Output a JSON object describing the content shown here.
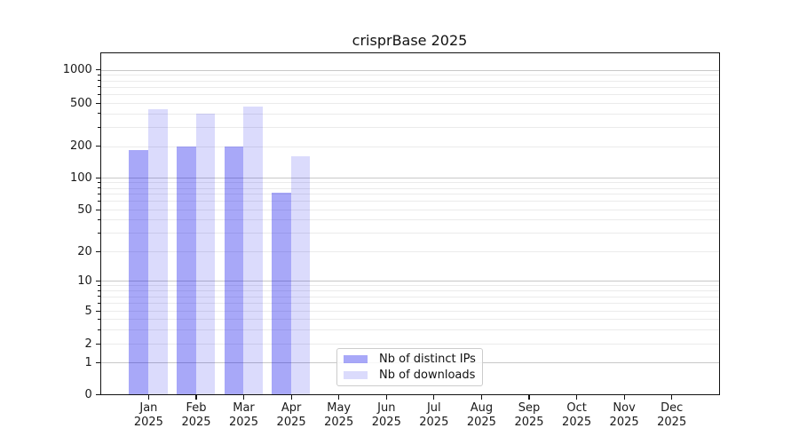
{
  "chart_data": {
    "type": "bar",
    "title": "crisprBase 2025",
    "categories": [
      {
        "label": "Jan",
        "sublabel": "2025"
      },
      {
        "label": "Feb",
        "sublabel": "2025"
      },
      {
        "label": "Mar",
        "sublabel": "2025"
      },
      {
        "label": "Apr",
        "sublabel": "2025"
      },
      {
        "label": "May",
        "sublabel": "2025"
      },
      {
        "label": "Jun",
        "sublabel": "2025"
      },
      {
        "label": "Jul",
        "sublabel": "2025"
      },
      {
        "label": "Aug",
        "sublabel": "2025"
      },
      {
        "label": "Sep",
        "sublabel": "2025"
      },
      {
        "label": "Oct",
        "sublabel": "2025"
      },
      {
        "label": "Nov",
        "sublabel": "2025"
      },
      {
        "label": "Dec",
        "sublabel": "2025"
      }
    ],
    "series": [
      {
        "name": "Nb of distinct IPs",
        "color": "rgba(0,0,235,0.34)",
        "values": [
          185,
          197,
          197,
          72,
          0,
          0,
          0,
          0,
          0,
          0,
          0,
          0
        ]
      },
      {
        "name": "Nb of downloads",
        "color": "rgba(0,0,235,0.14)",
        "values": [
          440,
          395,
          465,
          160,
          0,
          0,
          0,
          0,
          0,
          0,
          0,
          0
        ]
      }
    ],
    "xlabel": "",
    "ylabel": "",
    "yscale": "symlog",
    "yticks": [
      0,
      1,
      2,
      5,
      10,
      20,
      50,
      100,
      200,
      500,
      1000
    ],
    "ylim": [
      0,
      1500
    ],
    "grid": "horizontal, major and minor (log decades)",
    "legend_position": "inside lower-center"
  }
}
